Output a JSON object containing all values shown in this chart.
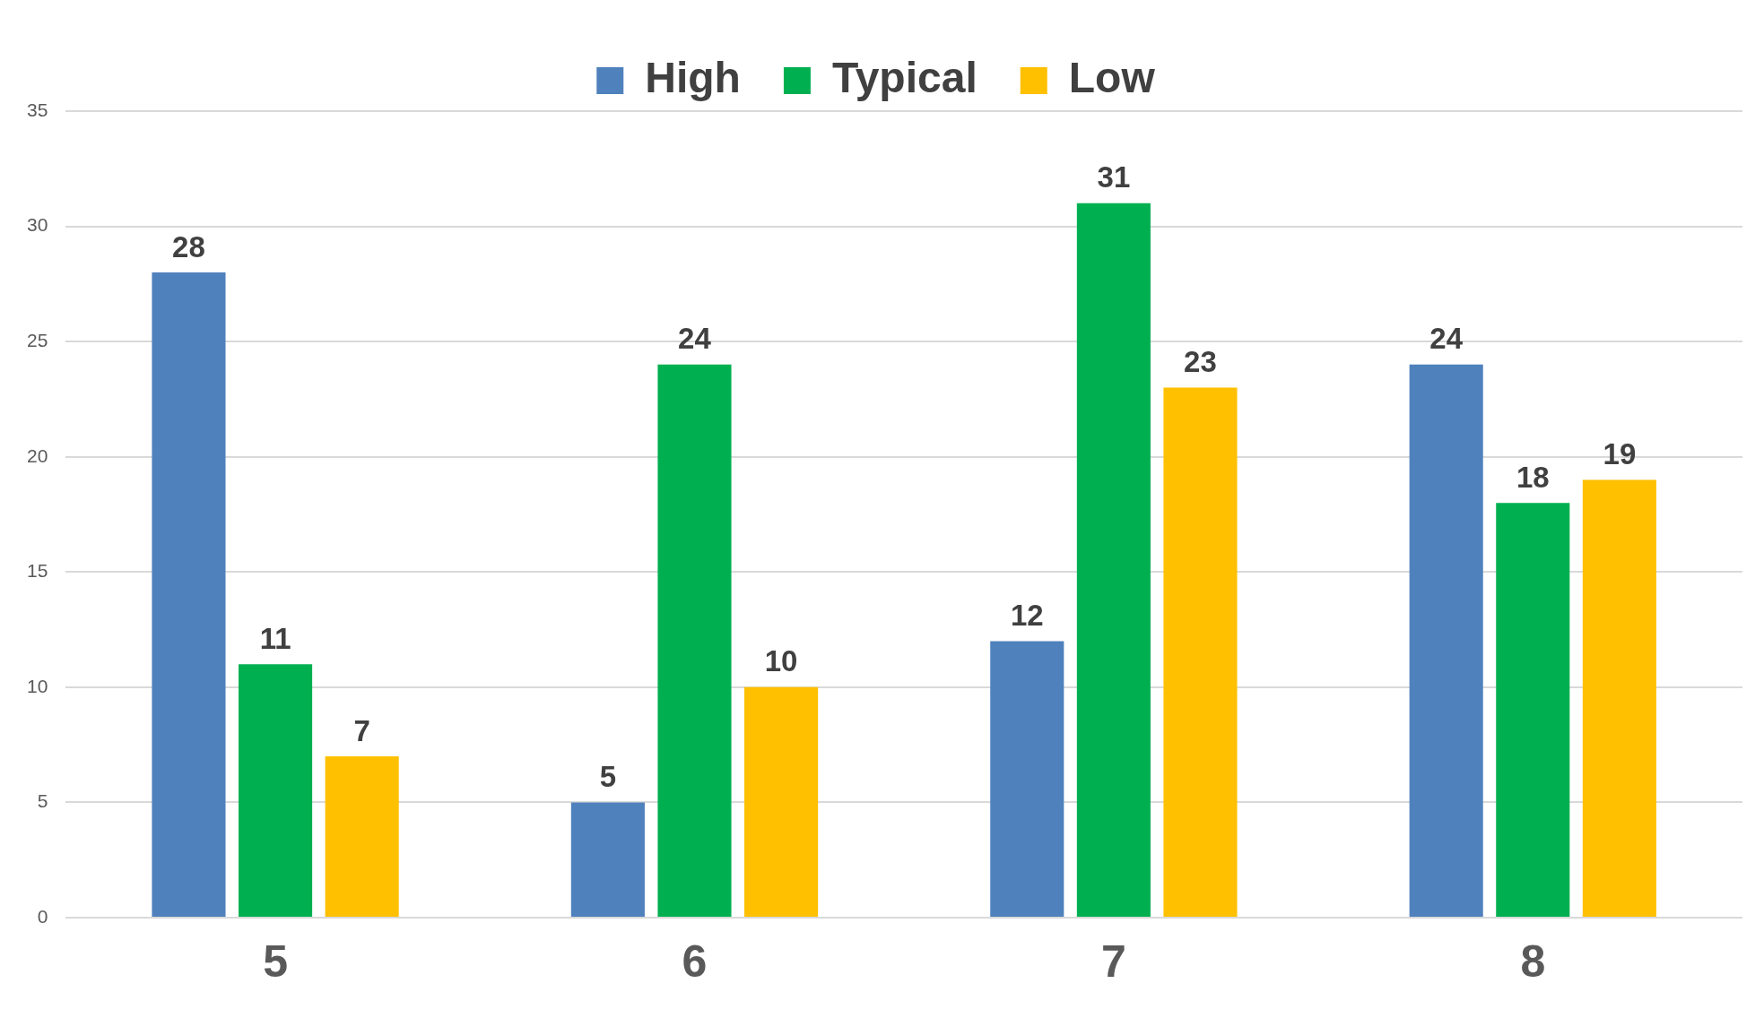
{
  "chart_data": {
    "type": "bar",
    "categories": [
      "5",
      "6",
      "7",
      "8"
    ],
    "series": [
      {
        "name": "High",
        "color": "#4f81bd",
        "values": [
          28,
          5,
          12,
          24
        ]
      },
      {
        "name": "Typical",
        "color": "#00b050",
        "values": [
          11,
          24,
          31,
          18
        ]
      },
      {
        "name": "Low",
        "color": "#ffc000",
        "values": [
          7,
          10,
          23,
          19
        ]
      }
    ],
    "ylim": [
      0,
      35
    ],
    "yticks": [
      0,
      5,
      10,
      15,
      20,
      25,
      30,
      35
    ],
    "grid": "y",
    "legend": "top left",
    "data_labels": true
  }
}
